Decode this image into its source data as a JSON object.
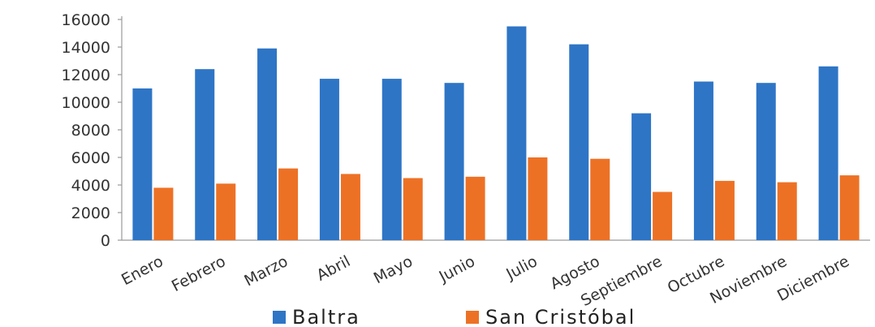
{
  "chart_data": {
    "type": "bar",
    "categories": [
      "Enero",
      "Febrero",
      "Marzo",
      "Abril",
      "Mayo",
      "Junio",
      "Julio",
      "Agosto",
      "Septiembre",
      "Octubre",
      "Noviembre",
      "Diciembre"
    ],
    "series": [
      {
        "name": "Baltra",
        "color": "#2E75C6",
        "values": [
          11000,
          12400,
          13900,
          11700,
          11700,
          11400,
          15500,
          14200,
          9200,
          11500,
          11400,
          12600
        ]
      },
      {
        "name": "San Cristóbal",
        "color": "#ED7125",
        "values": [
          3800,
          4100,
          5200,
          4800,
          4500,
          4600,
          6000,
          5900,
          3500,
          4300,
          4200,
          4700
        ]
      }
    ],
    "yticks": [
      "0",
      "2000",
      "4000",
      "6000",
      "8000",
      "10000",
      "12000",
      "14000",
      "16000"
    ],
    "ylim": [
      0,
      16000
    ],
    "grid": false,
    "legend": "bottom"
  }
}
